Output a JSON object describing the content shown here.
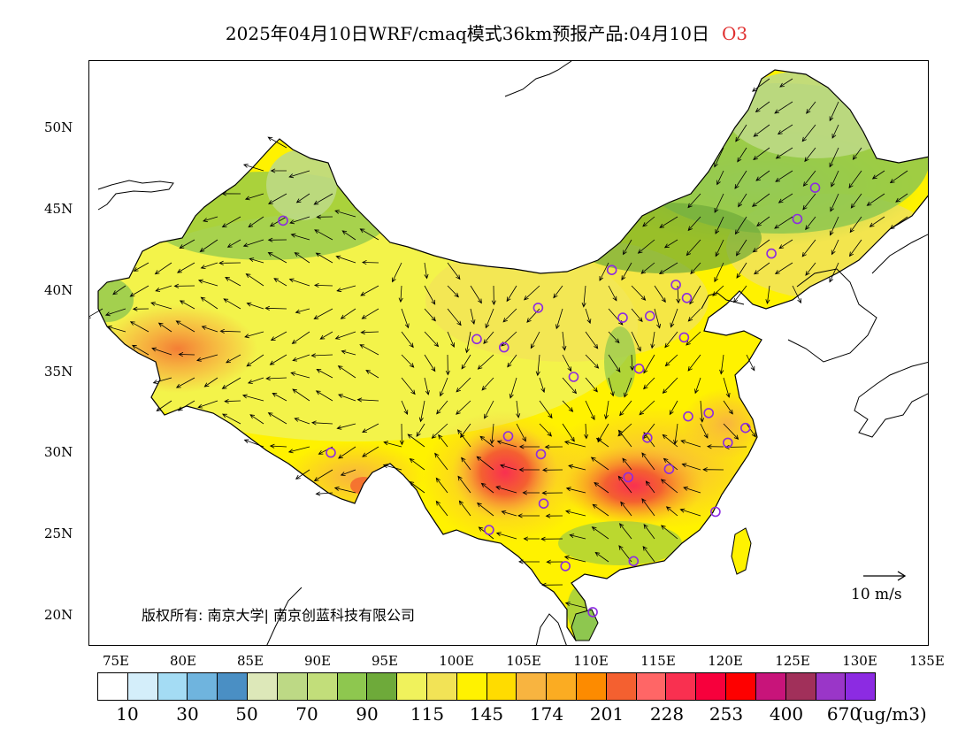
{
  "title": {
    "main": "2025年04月10日WRF/cmaq模式36km预报产品:04月10日",
    "pollutant": "O3",
    "pollutant_color": "#e03030"
  },
  "map": {
    "lat_labels": [
      "50N",
      "45N",
      "40N",
      "35N",
      "30N",
      "25N",
      "20N"
    ],
    "lon_labels": [
      "75E",
      "80E",
      "85E",
      "90E",
      "95E",
      "100E",
      "105E",
      "110E",
      "115E",
      "120E",
      "125E",
      "130E",
      "135E"
    ],
    "copyright": "版权所有: 南京大学| 南京创蓝科技有限公司",
    "wind_reference": "10 m/s"
  },
  "colorbar": {
    "colors": [
      "#ffffff",
      "#d4eefa",
      "#a4dcf4",
      "#6fb4de",
      "#4a8fc4",
      "#dde8b9",
      "#bdd985",
      "#c2de7a",
      "#8ec74f",
      "#6eaa3a",
      "#f0f25c",
      "#f2e356",
      "#fff200",
      "#ffdc00",
      "#f8b440",
      "#fbac22",
      "#fd8b00",
      "#f46030",
      "#ff6666",
      "#f93050",
      "#f7003c",
      "#fe0000",
      "#c8147a",
      "#a1305a",
      "#9a36c8",
      "#8c2be2"
    ],
    "ticks": [
      "10",
      "30",
      "50",
      "70",
      "90",
      "115",
      "145",
      "174",
      "201",
      "228",
      "253",
      "400",
      "670"
    ],
    "unit": "(ug/m3)"
  },
  "monitoring_sites": [
    {
      "lon": 87.6,
      "lat": 43.8
    },
    {
      "lon": 91.1,
      "lat": 29.7
    },
    {
      "lon": 101.8,
      "lat": 36.6
    },
    {
      "lon": 103.8,
      "lat": 36.1
    },
    {
      "lon": 106.3,
      "lat": 38.5
    },
    {
      "lon": 104.1,
      "lat": 30.7
    },
    {
      "lon": 106.5,
      "lat": 29.6
    },
    {
      "lon": 106.7,
      "lat": 26.6
    },
    {
      "lon": 102.7,
      "lat": 25.0
    },
    {
      "lon": 108.9,
      "lat": 34.3
    },
    {
      "lon": 111.7,
      "lat": 40.8
    },
    {
      "lon": 112.5,
      "lat": 37.9
    },
    {
      "lon": 114.5,
      "lat": 38.0
    },
    {
      "lon": 116.4,
      "lat": 39.9
    },
    {
      "lon": 117.2,
      "lat": 39.1
    },
    {
      "lon": 117.0,
      "lat": 36.7
    },
    {
      "lon": 113.7,
      "lat": 34.8
    },
    {
      "lon": 114.3,
      "lat": 30.6
    },
    {
      "lon": 112.9,
      "lat": 28.2
    },
    {
      "lon": 115.9,
      "lat": 28.7
    },
    {
      "lon": 117.3,
      "lat": 31.9
    },
    {
      "lon": 118.8,
      "lat": 32.1
    },
    {
      "lon": 120.2,
      "lat": 30.3
    },
    {
      "lon": 121.5,
      "lat": 31.2
    },
    {
      "lon": 119.3,
      "lat": 26.1
    },
    {
      "lon": 113.3,
      "lat": 23.1
    },
    {
      "lon": 108.3,
      "lat": 22.8
    },
    {
      "lon": 110.3,
      "lat": 20.0
    },
    {
      "lon": 123.4,
      "lat": 41.8
    },
    {
      "lon": 125.3,
      "lat": 43.9
    },
    {
      "lon": 126.6,
      "lat": 45.8
    }
  ]
}
